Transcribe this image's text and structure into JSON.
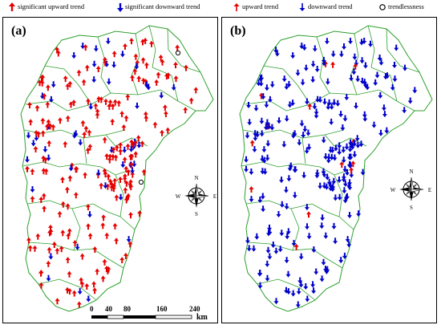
{
  "legend": {
    "items": [
      {
        "label": "significant upward trend",
        "symbol": "sig-up-arrow-icon",
        "color": "#e60000"
      },
      {
        "label": "significant downward trend",
        "symbol": "sig-down-arrow-icon",
        "color": "#0000cc"
      },
      {
        "label": "upward trend",
        "symbol": "up-arrow-icon",
        "color": "#e60000"
      },
      {
        "label": "downward trend",
        "symbol": "down-arrow-icon",
        "color": "#0000cc"
      },
      {
        "label": "trendlessness",
        "symbol": "circle-icon",
        "color": "#000000"
      }
    ]
  },
  "panels": [
    {
      "label": "(a)",
      "dominant_trend": "upward",
      "arrow_color": "#e60000"
    },
    {
      "label": "(b)",
      "dominant_trend": "downward",
      "arrow_color": "#0000cc"
    }
  ],
  "compass": {
    "n": "N",
    "s": "S",
    "e": "E",
    "w": "W"
  },
  "scale": {
    "ticks": [
      "0",
      "40",
      "80",
      "160",
      "240"
    ],
    "unit": "km"
  },
  "colors": {
    "boundary": "#2ca02c",
    "up": "#e60000",
    "down": "#0000cc"
  }
}
